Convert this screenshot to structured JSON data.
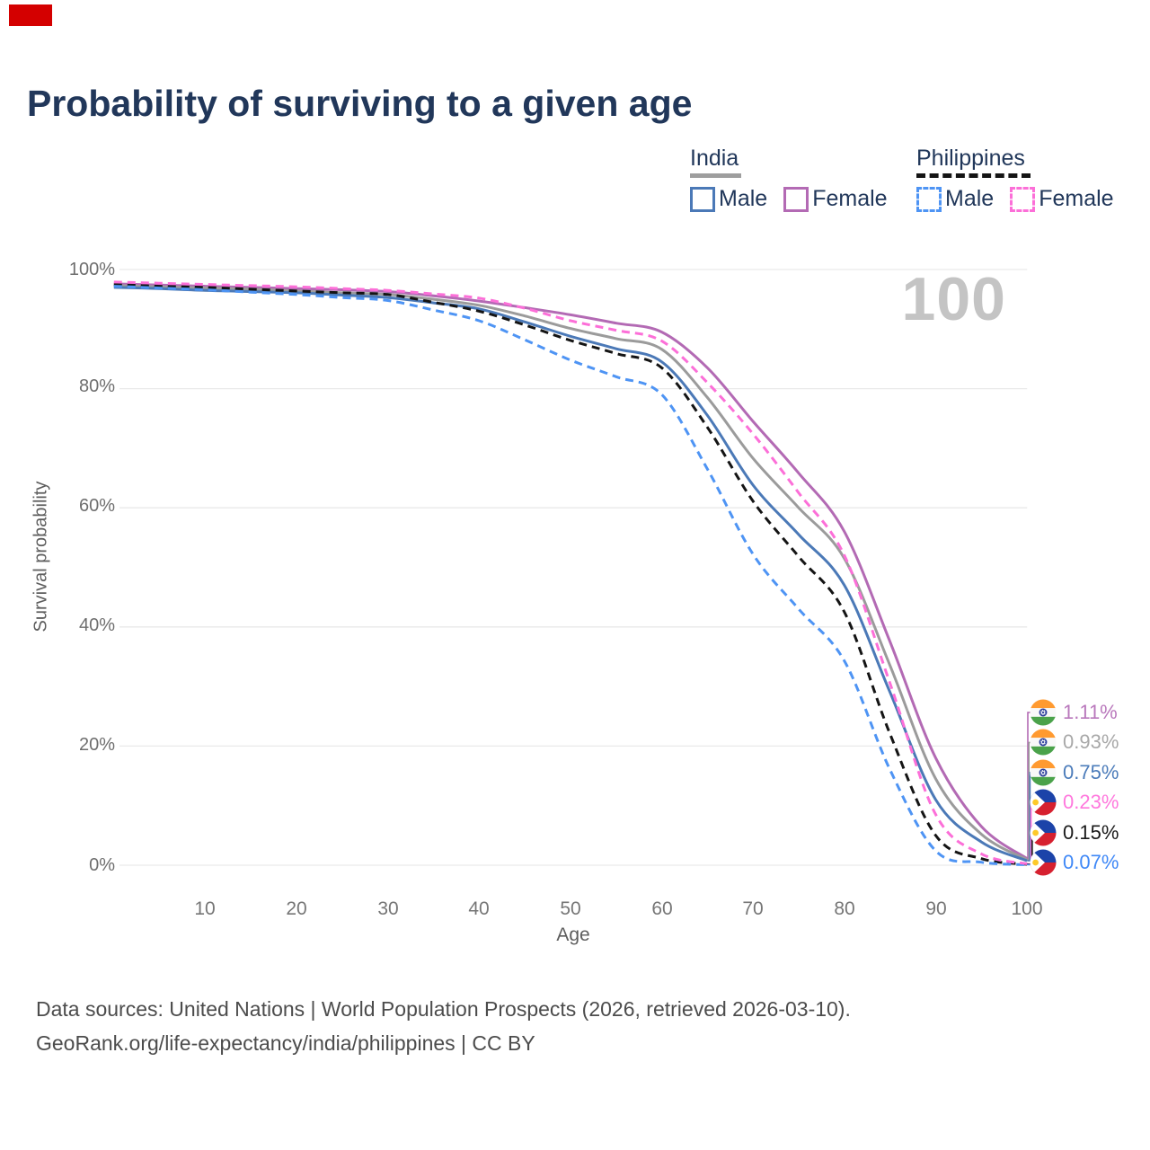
{
  "corner_marker_color": "#d40000",
  "title": "Probability of surviving to a given age",
  "watermark": "100",
  "legend": {
    "india": {
      "label": "India",
      "line_style": "solid",
      "underline_color": "#9e9e9e",
      "items": [
        {
          "label": "Male",
          "color": "#4b79b7"
        },
        {
          "label": "Female",
          "color": "#b36ab4"
        }
      ]
    },
    "philippines": {
      "label": "Philippines",
      "line_style": "dashed",
      "underline_color": "#141414",
      "items": [
        {
          "label": "Male",
          "color": "#4e94f4"
        },
        {
          "label": "Female",
          "color": "#fc6fd8"
        }
      ]
    }
  },
  "axes": {
    "y_title": "Survival probability",
    "x_title": "Age",
    "y_ticks": [
      "100%",
      "80%",
      "60%",
      "40%",
      "20%",
      "0%"
    ],
    "x_ticks": [
      "10",
      "20",
      "30",
      "40",
      "50",
      "60",
      "70",
      "80",
      "90",
      "100"
    ]
  },
  "chart_data": {
    "type": "line",
    "title": "Probability of surviving to a given age",
    "xlabel": "Age",
    "ylabel": "Survival probability",
    "xlim": [
      0,
      100
    ],
    "ylim": [
      0,
      100
    ],
    "grid": true,
    "x": [
      0,
      5,
      10,
      15,
      20,
      25,
      30,
      35,
      40,
      45,
      50,
      55,
      60,
      65,
      70,
      75,
      80,
      85,
      90,
      95,
      100
    ],
    "series": [
      {
        "name": "India Female",
        "country": "india",
        "sex": "female",
        "color": "#b36ab4",
        "dash": "solid",
        "values": [
          97.6,
          97.4,
          97.2,
          97.0,
          96.8,
          96.6,
          96.3,
          95.6,
          94.7,
          93.6,
          92.4,
          91.0,
          89.5,
          83.5,
          74.5,
          65.8,
          56.0,
          37.5,
          18.0,
          6.5,
          1.11
        ]
      },
      {
        "name": "India Both sexes",
        "country": "india",
        "sex": "both",
        "color": "#9b9b9b",
        "dash": "solid",
        "values": [
          97.3,
          97.1,
          96.9,
          96.7,
          96.4,
          96.1,
          95.8,
          95.0,
          94.0,
          92.2,
          90.1,
          88.4,
          86.6,
          78.5,
          68.3,
          60.0,
          51.5,
          33.5,
          14.5,
          5.2,
          0.93
        ]
      },
      {
        "name": "India Male",
        "country": "india",
        "sex": "male",
        "color": "#4b79b7",
        "dash": "solid",
        "values": [
          97.0,
          96.8,
          96.5,
          96.3,
          96.1,
          95.7,
          95.3,
          94.4,
          93.4,
          91.2,
          88.8,
          86.7,
          84.5,
          75.5,
          63.8,
          55.5,
          47.0,
          29.0,
          11.0,
          3.9,
          0.75
        ]
      },
      {
        "name": "Philippines Both sexes",
        "country": "philippines",
        "sex": "both",
        "color": "#141414",
        "dash": "dashed",
        "values": [
          97.5,
          97.2,
          97.0,
          96.7,
          96.4,
          96.1,
          95.8,
          94.5,
          93.0,
          90.7,
          88.1,
          85.9,
          83.5,
          73.5,
          61.1,
          51.8,
          42.5,
          22.0,
          5.0,
          1.1,
          0.15
        ]
      },
      {
        "name": "Philippines Male",
        "country": "philippines",
        "sex": "male",
        "color": "#4e94f4",
        "dash": "dashed",
        "values": [
          97.2,
          96.9,
          96.6,
          96.2,
          95.8,
          95.3,
          94.8,
          93.2,
          91.4,
          88.2,
          84.8,
          82.0,
          79.0,
          66.5,
          52.2,
          43.0,
          34.3,
          16.0,
          2.4,
          0.5,
          0.07
        ]
      },
      {
        "name": "Philippines Female",
        "country": "philippines",
        "sex": "female",
        "color": "#fc6fd8",
        "dash": "dashed",
        "values": [
          97.9,
          97.7,
          97.5,
          97.3,
          97.1,
          96.8,
          96.5,
          95.9,
          95.2,
          93.5,
          91.4,
          89.8,
          88.0,
          81.0,
          72.4,
          62.5,
          52.0,
          30.5,
          8.5,
          1.9,
          0.23
        ]
      }
    ]
  },
  "end_labels": [
    {
      "value": "1.11%",
      "color": "#b978bc",
      "flag": "india",
      "series": "India Female"
    },
    {
      "value": "0.93%",
      "color": "#a8a8a8",
      "flag": "india",
      "series": "India Both sexes"
    },
    {
      "value": "0.75%",
      "color": "#4c7cba",
      "flag": "india",
      "series": "India Male"
    },
    {
      "value": "0.23%",
      "color": "#ff78dd",
      "flag": "philippines",
      "series": "Philippines Female"
    },
    {
      "value": "0.15%",
      "color": "#1a1a1a",
      "flag": "philippines",
      "series": "Philippines Both sexes"
    },
    {
      "value": "0.07%",
      "color": "#3f88f7",
      "flag": "philippines",
      "series": "Philippines Male"
    }
  ],
  "footer": {
    "line1": "Data sources: United Nations | World Population Prospects (2026, retrieved 2026-03-10).",
    "line2": "GeoRank.org/life-expectancy/india/philippines | CC BY"
  }
}
